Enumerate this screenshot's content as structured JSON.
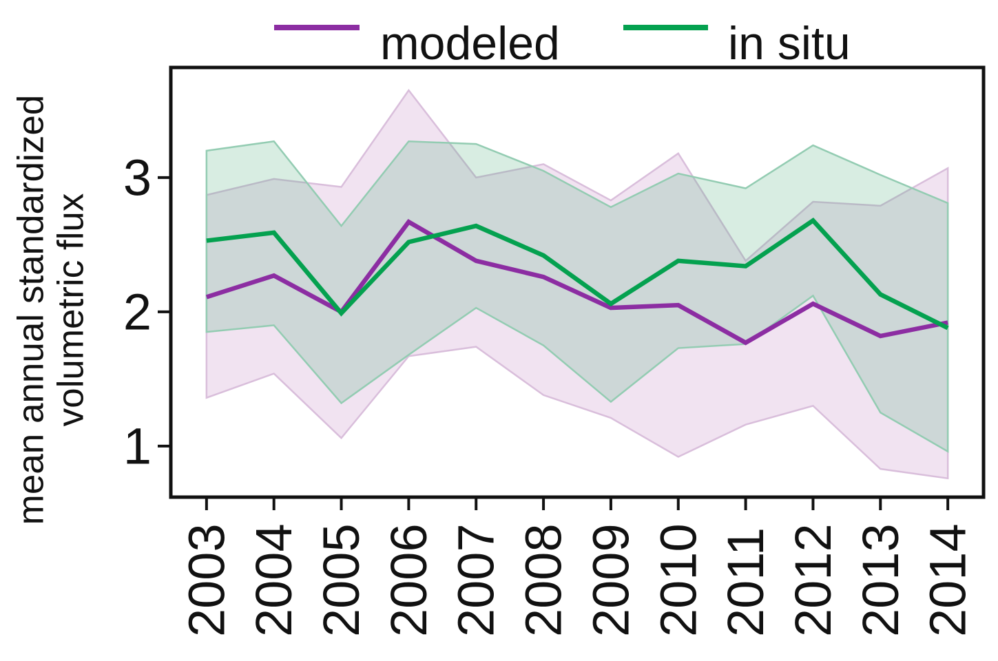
{
  "figure": {
    "ylabel_line1": "mean annual standardized",
    "ylabel_line2": "volumetric flux"
  },
  "chart_data": {
    "type": "line",
    "title": "",
    "xlabel": "",
    "ylabel": "mean annual standardized volumetric flux",
    "x": [
      2003,
      2004,
      2005,
      2006,
      2007,
      2008,
      2009,
      2010,
      2011,
      2012,
      2013,
      2014
    ],
    "series": [
      {
        "name": "modeled",
        "color": "#8c2da2",
        "band_fill": "#c17ec1",
        "band_edge": "#d9bedb",
        "values": [
          2.11,
          2.27,
          2.0,
          2.67,
          2.38,
          2.26,
          2.03,
          2.05,
          1.77,
          2.06,
          1.82,
          1.92
        ],
        "band_upper": [
          2.87,
          2.99,
          2.93,
          3.65,
          3.0,
          3.1,
          2.83,
          3.18,
          2.38,
          2.82,
          2.79,
          3.07
        ],
        "band_lower": [
          1.36,
          1.54,
          1.06,
          1.67,
          1.74,
          1.38,
          1.21,
          0.92,
          1.16,
          1.3,
          0.83,
          0.76
        ]
      },
      {
        "name": "in situ",
        "color": "#04a14f",
        "band_fill": "#4daf7c",
        "band_edge": "#93ccb2",
        "values": [
          2.53,
          2.59,
          1.99,
          2.52,
          2.64,
          2.42,
          2.06,
          2.38,
          2.34,
          2.68,
          2.13,
          1.88
        ],
        "band_upper": [
          3.2,
          3.27,
          2.64,
          3.27,
          3.25,
          3.05,
          2.78,
          3.03,
          2.92,
          3.24,
          3.02,
          2.81
        ],
        "band_lower": [
          1.85,
          1.9,
          1.32,
          1.68,
          2.03,
          1.75,
          1.33,
          1.73,
          1.76,
          2.12,
          1.25,
          0.96
        ]
      }
    ],
    "yticks": [
      1,
      2,
      3
    ],
    "ylim": [
      0.62,
      3.82
    ],
    "xlim": [
      2002.47,
      2014.53
    ],
    "grid": false,
    "legend_position": "top",
    "band_opacity": 0.22
  }
}
